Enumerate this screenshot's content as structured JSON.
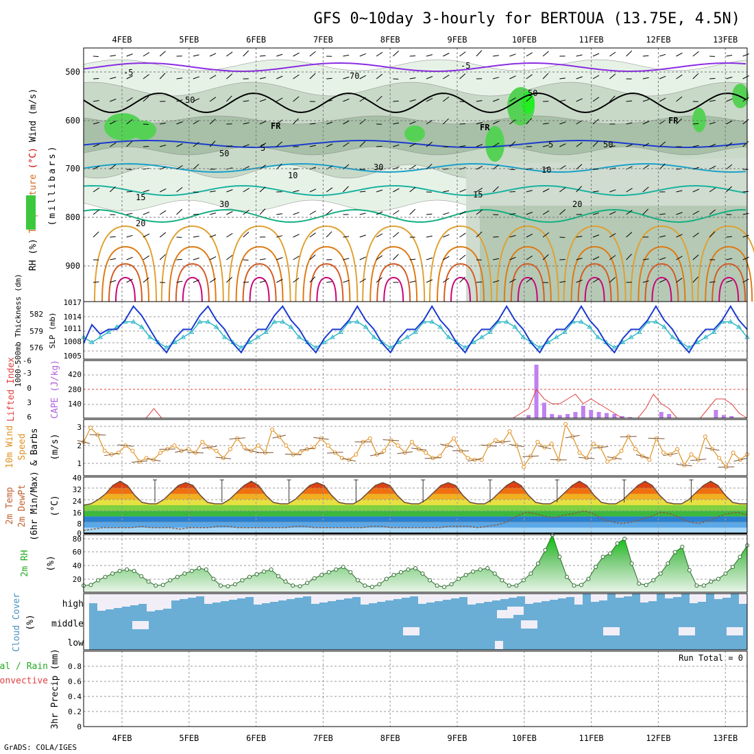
{
  "title": "GFS 0~10day 3-hourly for BERTOUA (13.75E, 4.5N)",
  "footer": "GrADS: COLA/IGES",
  "run_total": "Run Total = 0",
  "colors": {
    "sea": "#6aaed6",
    "cloudgap": "#f2eef7",
    "rh_green": "#3cb83c",
    "precip_green": "#22aa22",
    "temp_hot": "#cc2200"
  },
  "date_labels": [
    "4FEB",
    "5FEB",
    "6FEB",
    "7FEB",
    "8FEB",
    "9FEB",
    "10FEB",
    "11FEB",
    "12FEB",
    "13FEB"
  ],
  "panels": {
    "upper": {
      "ylabel_parts": [
        {
          "text": "RH (%)",
          "color": "#000000"
        },
        {
          "text": "Temperature",
          "color": "#d2691e"
        },
        {
          "text": "(°C)",
          "color": "#d40000"
        },
        {
          "text": "Wind (m/s)",
          "color": "#000000"
        }
      ],
      "ylabel_mb": "(millibars)",
      "pressure_ticks": [
        "500",
        "600",
        "700",
        "800",
        "900"
      ],
      "contour_labels": [
        {
          "text": "-5",
          "color": "#8a2be2"
        },
        {
          "text": "-5",
          "color": "#8a2be2"
        },
        {
          "text": "5",
          "color": "#1a3ad0"
        },
        {
          "text": "5",
          "color": "#1a3ad0"
        },
        {
          "text": "10",
          "color": "#1aa0c8"
        },
        {
          "text": "10",
          "color": "#1aa0c8"
        },
        {
          "text": "15",
          "color": "#19b2a0"
        },
        {
          "text": "15",
          "color": "#19b2a0"
        },
        {
          "text": "20",
          "color": "#10b080"
        },
        {
          "text": "20",
          "color": "#10b080"
        },
        {
          "text": "FR",
          "color": "#000000"
        },
        {
          "text": "FR",
          "color": "#000000"
        },
        {
          "text": "FR",
          "color": "#000000"
        },
        {
          "text": "30",
          "color": "#555555"
        },
        {
          "text": "50",
          "color": "#555555"
        },
        {
          "text": "30",
          "color": "#555555"
        },
        {
          "text": "50",
          "color": "#555555"
        },
        {
          "text": "70",
          "color": "#555555"
        },
        {
          "text": "50",
          "color": "#555555"
        },
        {
          "text": "50",
          "color": "#555555"
        }
      ]
    },
    "slp": {
      "ylabel_left": "1000-500mb Thickness (dm)",
      "ylabel_right": "SLP (mb)",
      "ticks_left": [
        "582",
        "579",
        "576"
      ],
      "ticks_right": [
        "1017",
        "1014",
        "1011",
        "1008",
        "1005"
      ]
    },
    "cape": {
      "ylabel_left": "Lifted Index",
      "ylabel_right": "CAPE (J/kg)",
      "ticks_left": [
        "-6",
        "-3",
        "0",
        "3",
        "6"
      ],
      "ticks_right": [
        "420",
        "280",
        "140"
      ]
    },
    "wind10": {
      "ylabel_parts": [
        "10m Wind",
        "Speed",
        "& Barbs"
      ],
      "unit": "(m/s)",
      "ticks": [
        "3",
        "2",
        "1"
      ]
    },
    "temp2m": {
      "ylabel_parts": [
        "2m Temp",
        "2m DewPt",
        "(6hr Min/Max)"
      ],
      "unit": "(°C)",
      "ticks": [
        "40",
        "32",
        "24",
        "16",
        "8",
        "0"
      ]
    },
    "rh2m": {
      "ylabel": "2m RH",
      "unit": "(%)",
      "ticks": [
        "80",
        "60",
        "40",
        "20"
      ]
    },
    "cloud": {
      "ylabel": "Cloud Cover",
      "unit": "(%)",
      "levels": [
        "high",
        "middle",
        "low"
      ]
    },
    "precip": {
      "ylabel_right": "3hr Precip (mm)",
      "ylabel_left1": "Total / Rain",
      "ylabel_left2": "Convective",
      "ticks": [
        "0.8",
        "0.6",
        "0.4",
        "0.2",
        "0"
      ]
    }
  },
  "chart_data": [
    {
      "type": "line",
      "title": "SLP & 1000-500mb Thickness",
      "x_step_hours": 3,
      "series": [
        {
          "name": "SLP (mb)",
          "values": [
            1008,
            1012,
            1010,
            1011,
            1011,
            1013,
            1016,
            1014,
            1011,
            1008,
            1006,
            1009,
            1011,
            1011,
            1014,
            1016,
            1013,
            1011,
            1008,
            1006,
            1009,
            1011,
            1011,
            1014,
            1016,
            1013,
            1011,
            1008,
            1006,
            1009,
            1011,
            1011,
            1013,
            1016,
            1013,
            1011,
            1008,
            1006,
            1009,
            1011,
            1011,
            1013,
            1016,
            1013,
            1011,
            1008,
            1006,
            1009,
            1011,
            1011,
            1013,
            1016,
            1013,
            1011,
            1008,
            1006,
            1009,
            1011,
            1011,
            1013,
            1016,
            1013,
            1011,
            1008,
            1006,
            1009,
            1011,
            1011,
            1013,
            1016,
            1013,
            1011,
            1008,
            1006,
            1009,
            1011,
            1011,
            1013,
            1016,
            1013,
            1011
          ]
        },
        {
          "name": "Thickness (dm)",
          "values": [
            578,
            577,
            578,
            579,
            580,
            581,
            581,
            580,
            578,
            577,
            576,
            577,
            578,
            579,
            581,
            581,
            580,
            578,
            577,
            576,
            577,
            578,
            579,
            581,
            581,
            580,
            578,
            577,
            576,
            577,
            578,
            579,
            581,
            581,
            580,
            578,
            577,
            576,
            577,
            578,
            579,
            581,
            581,
            580,
            578,
            577,
            576,
            577,
            578,
            579,
            581,
            581,
            580,
            578,
            577,
            576,
            577,
            578,
            579,
            581,
            581,
            580,
            578,
            577,
            576,
            577,
            578,
            579,
            581,
            581,
            580,
            578,
            577,
            576,
            577,
            578,
            579,
            581,
            581,
            580,
            578
          ]
        }
      ]
    },
    {
      "type": "bar",
      "title": "CAPE & Lifted Index",
      "cape_values": [
        0,
        0,
        0,
        0,
        0,
        0,
        0,
        0,
        0,
        0,
        0,
        0,
        0,
        0,
        0,
        0,
        0,
        0,
        0,
        0,
        0,
        0,
        0,
        0,
        0,
        0,
        0,
        0,
        0,
        0,
        0,
        0,
        0,
        0,
        0,
        0,
        0,
        0,
        0,
        0,
        0,
        0,
        0,
        0,
        0,
        0,
        0,
        0,
        0,
        0,
        0,
        0,
        0,
        0,
        0,
        0,
        0,
        30,
        520,
        150,
        40,
        30,
        40,
        60,
        120,
        80,
        60,
        50,
        40,
        20,
        10,
        0,
        0,
        0,
        60,
        40,
        0,
        0,
        0,
        0,
        0,
        80,
        30,
        20,
        0,
        0
      ],
      "lifted_index_values": [
        6,
        6,
        6,
        6,
        6,
        6,
        6,
        6,
        6,
        4,
        6,
        6,
        6,
        6,
        6,
        6,
        6,
        6,
        6,
        6,
        6,
        6,
        6,
        6,
        6,
        6,
        6,
        6,
        6,
        6,
        6,
        6,
        6,
        6,
        6,
        6,
        6,
        6,
        6,
        6,
        6,
        6,
        6,
        6,
        6,
        6,
        6,
        6,
        6,
        6,
        6,
        6,
        6,
        6,
        6,
        6,
        5,
        4,
        0,
        2,
        3,
        3,
        2,
        1,
        3,
        2,
        3,
        4,
        5,
        6,
        6,
        6,
        4,
        1,
        3,
        4,
        6,
        6,
        6,
        6,
        4,
        2,
        2,
        3,
        5,
        6
      ]
    },
    {
      "type": "line",
      "title": "10m Wind Speed",
      "unit": "m/s",
      "values": [
        2.2,
        3.0,
        2.6,
        1.7,
        1.5,
        1.6,
        2.0,
        1.7,
        1.1,
        1.3,
        1.2,
        1.6,
        1.8,
        2.0,
        1.7,
        1.8,
        1.6,
        2.2,
        1.9,
        1.7,
        1.3,
        1.8,
        2.4,
        1.9,
        1.7,
        2.0,
        1.6,
        2.9,
        2.5,
        2.0,
        1.5,
        1.6,
        1.8,
        1.9,
        2.4,
        2.0,
        1.6,
        1.3,
        1.2,
        1.5,
        2.2,
        2.4,
        1.5,
        1.7,
        2.3,
        2.0,
        1.6,
        2.2,
        1.8,
        1.6,
        1.3,
        1.4,
        2.0,
        2.4,
        1.7,
        1.3,
        1.2,
        1.2,
        2.0,
        2.3,
        2.2,
        2.8,
        2.0,
        0.8,
        1.4,
        2.2,
        1.9,
        2.1,
        1.2,
        3.2,
        2.5,
        1.6,
        1.3,
        2.1,
        1.9,
        1.1,
        1.3,
        1.7,
        2.5,
        1.8,
        1.4,
        1.2,
        2.4,
        1.6,
        1.5,
        1.8,
        0.9,
        1.5,
        1.2,
        2.5,
        1.8,
        1.3,
        0.8,
        1.6,
        1.2,
        1.5
      ]
    },
    {
      "type": "area",
      "title": "2m Temperature & Dew Point",
      "unit": "°C",
      "temperature_values": [
        20,
        21,
        24,
        28,
        34,
        37,
        34,
        27,
        22,
        21,
        21,
        24,
        29,
        34,
        36,
        34,
        27,
        22,
        21,
        21,
        24,
        29,
        34,
        37,
        34,
        27,
        22,
        21,
        21,
        24,
        29,
        34,
        36,
        34,
        27,
        22,
        21,
        21,
        24,
        29,
        34,
        36,
        34,
        27,
        22,
        21,
        21,
        24,
        29,
        34,
        36,
        34,
        27,
        22,
        21,
        21,
        24,
        29,
        34,
        37,
        34,
        27,
        22,
        21,
        21,
        24,
        29,
        34,
        37,
        34,
        27,
        22,
        21,
        21,
        24,
        29,
        34,
        37,
        34,
        27,
        22,
        21,
        21,
        24,
        29,
        34,
        37,
        34,
        27,
        22,
        21,
        21
      ],
      "dewpoint_values": [
        2,
        3,
        4,
        4,
        4,
        4,
        5,
        4,
        4,
        4,
        3,
        4,
        4,
        4,
        5,
        5,
        4,
        4,
        4,
        4,
        4,
        4,
        5,
        5,
        4,
        4,
        4,
        4,
        4,
        4,
        5,
        5,
        4,
        4,
        4,
        4,
        4,
        4,
        5,
        5,
        5,
        4,
        5,
        6,
        8,
        12,
        15,
        14,
        12,
        11,
        13,
        14,
        16,
        14,
        10,
        8,
        7,
        8,
        10,
        12,
        15,
        14,
        11,
        8,
        7,
        9,
        12,
        14,
        15,
        13
      ]
    },
    {
      "type": "area",
      "title": "2m Relative Humidity",
      "unit": "%",
      "values": [
        12,
        13,
        20,
        25,
        30,
        34,
        36,
        34,
        26,
        18,
        12,
        13,
        20,
        25,
        30,
        34,
        38,
        36,
        22,
        12,
        11,
        14,
        20,
        25,
        29,
        33,
        36,
        26,
        18,
        12,
        11,
        16,
        23,
        28,
        32,
        36,
        40,
        32,
        20,
        12,
        10,
        14,
        22,
        28,
        32,
        36,
        38,
        30,
        20,
        12,
        10,
        14,
        22,
        28,
        33,
        36,
        38,
        30,
        20,
        12,
        12,
        20,
        30,
        45,
        65,
        88,
        55,
        25,
        12,
        13,
        22,
        40,
        55,
        60,
        75,
        82,
        45,
        15,
        13,
        20,
        30,
        45,
        62,
        70,
        35,
        12,
        12,
        18,
        22,
        30,
        40,
        55,
        72
      ]
    }
  ]
}
